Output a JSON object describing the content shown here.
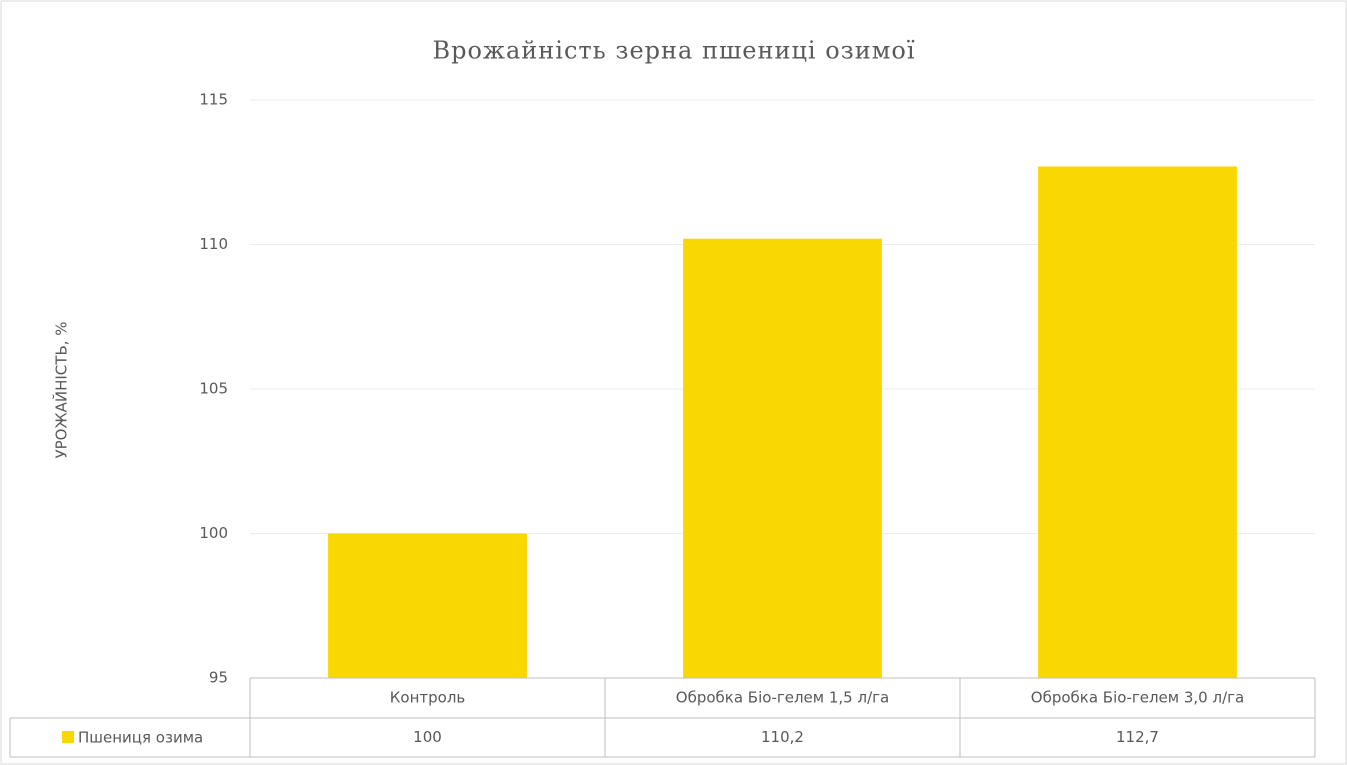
{
  "chart_data": {
    "type": "bar",
    "title": "Врожайність зерна пшениці озимої",
    "y_label": "УРОЖАЙНІСТЬ, %",
    "categories": [
      "Контроль",
      "Обробка Біо-гелем 1,5 л/га",
      "Обробка Біо-гелем 3,0 л/га"
    ],
    "series": [
      {
        "name": "Пшениця озима",
        "color": "#f9d700",
        "values": [
          100,
          110.2,
          112.7
        ],
        "value_labels": [
          "100",
          "110,2",
          "112,7"
        ]
      }
    ],
    "ylim": [
      95,
      115
    ],
    "yticks": [
      95,
      100,
      105,
      110,
      115
    ],
    "grid": true
  }
}
